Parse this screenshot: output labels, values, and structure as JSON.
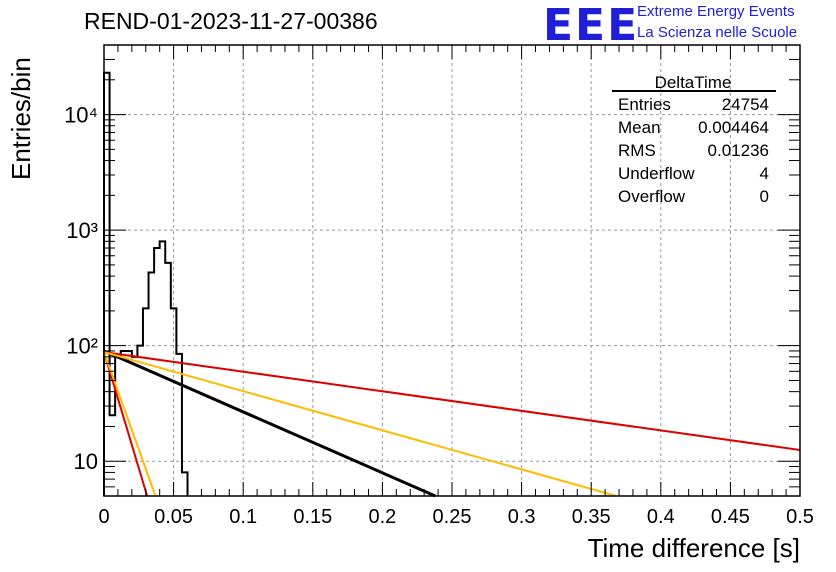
{
  "header": {
    "run_title": "REND-01-2023-11-27-00386",
    "logo_text": "EEE",
    "logo_line1": "Extreme Energy Events",
    "logo_line2": "La Scienza nelle Scuole"
  },
  "stats_box": {
    "title": "DeltaTime",
    "rows": [
      {
        "label": "Entries",
        "value": "24754"
      },
      {
        "label": "Mean",
        "value": "0.004464"
      },
      {
        "label": "RMS",
        "value": "0.01236"
      },
      {
        "label": "Underflow",
        "value": "4"
      },
      {
        "label": "Overflow",
        "value": "0"
      }
    ]
  },
  "chart_data": {
    "type": "histogram",
    "xlabel": "Time difference [s]",
    "ylabel": "Entries/bin",
    "xlim": [
      0,
      0.5
    ],
    "ylim": [
      5,
      40000
    ],
    "ylog": true,
    "grid": true,
    "x_ticks": [
      "0",
      "0.05",
      "0.1",
      "0.15",
      "0.2",
      "0.25",
      "0.3",
      "0.35",
      "0.4",
      "0.45",
      "0.5"
    ],
    "y_ticks": [
      {
        "value": 10,
        "label": "10"
      },
      {
        "value": 100,
        "label": "10²"
      },
      {
        "value": 1000,
        "label": "10³"
      },
      {
        "value": 10000,
        "label": "10⁴"
      }
    ],
    "hist_color": "#000000",
    "bins": [
      {
        "x0": 0.0,
        "x1": 0.004,
        "y": 23000
      },
      {
        "x0": 0.004,
        "x1": 0.008,
        "y": 25
      },
      {
        "x0": 0.008,
        "x1": 0.012,
        "y": 80
      },
      {
        "x0": 0.012,
        "x1": 0.016,
        "y": 90
      },
      {
        "x0": 0.016,
        "x1": 0.02,
        "y": 90
      },
      {
        "x0": 0.02,
        "x1": 0.024,
        "y": 80
      },
      {
        "x0": 0.024,
        "x1": 0.028,
        "y": 100
      },
      {
        "x0": 0.028,
        "x1": 0.032,
        "y": 210
      },
      {
        "x0": 0.032,
        "x1": 0.036,
        "y": 430
      },
      {
        "x0": 0.036,
        "x1": 0.04,
        "y": 700
      },
      {
        "x0": 0.04,
        "x1": 0.044,
        "y": 800
      },
      {
        "x0": 0.044,
        "x1": 0.048,
        "y": 520
      },
      {
        "x0": 0.048,
        "x1": 0.052,
        "y": 210
      },
      {
        "x0": 0.052,
        "x1": 0.056,
        "y": 85
      },
      {
        "x0": 0.056,
        "x1": 0.06,
        "y": 8
      }
    ],
    "fit_lines": [
      {
        "color": "#000000",
        "width": 3,
        "points": [
          [
            0.0,
            90
          ],
          [
            0.238,
            5
          ]
        ]
      },
      {
        "color": "#dd0000",
        "width": 2,
        "points": [
          [
            0.0,
            88
          ],
          [
            0.5,
            12.5
          ]
        ]
      },
      {
        "color": "#ffbb00",
        "width": 2,
        "points": [
          [
            0.0,
            88
          ],
          [
            0.368,
            5
          ]
        ]
      },
      {
        "color": "#dd0000",
        "width": 2,
        "points": [
          [
            0.0,
            88
          ],
          [
            0.031,
            5
          ]
        ]
      },
      {
        "color": "#ffbb00",
        "width": 2,
        "points": [
          [
            0.0,
            88
          ],
          [
            0.037,
            5
          ]
        ]
      }
    ]
  }
}
